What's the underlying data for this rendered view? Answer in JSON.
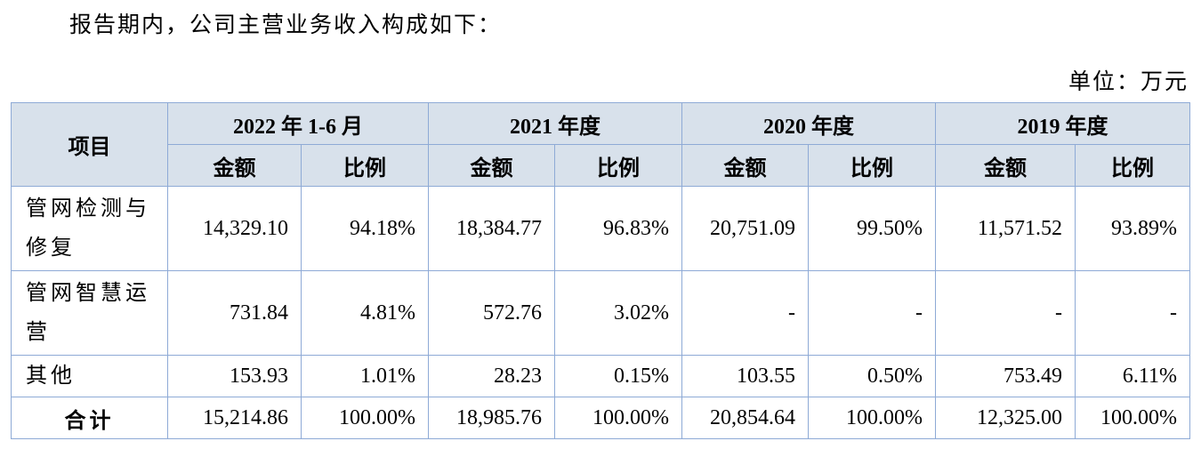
{
  "intro": "报告期内，公司主营业务收入构成如下：",
  "unit": "单位：万元",
  "table": {
    "header": {
      "item": "项目",
      "periods": [
        "2022 年 1-6 月",
        "2021 年度",
        "2020 年度",
        "2019 年度"
      ],
      "subcolumns": [
        "金额",
        "比例",
        "金额",
        "比例",
        "金额",
        "比例",
        "金额",
        "比例"
      ]
    },
    "rows": [
      {
        "label": "管网检测与修复",
        "cells": [
          "14,329.10",
          "94.18%",
          "18,384.77",
          "96.83%",
          "20,751.09",
          "99.50%",
          "11,571.52",
          "93.89%"
        ]
      },
      {
        "label": "管网智慧运营",
        "cells": [
          "731.84",
          "4.81%",
          "572.76",
          "3.02%",
          "-",
          "-",
          "-",
          "-"
        ]
      },
      {
        "label": "其他",
        "cells": [
          "153.93",
          "1.01%",
          "28.23",
          "0.15%",
          "103.55",
          "0.50%",
          "753.49",
          "6.11%"
        ]
      },
      {
        "label": "合计",
        "cells": [
          "15,214.86",
          "100.00%",
          "18,985.76",
          "100.00%",
          "20,854.64",
          "100.00%",
          "12,325.00",
          "100.00%"
        ]
      }
    ]
  }
}
